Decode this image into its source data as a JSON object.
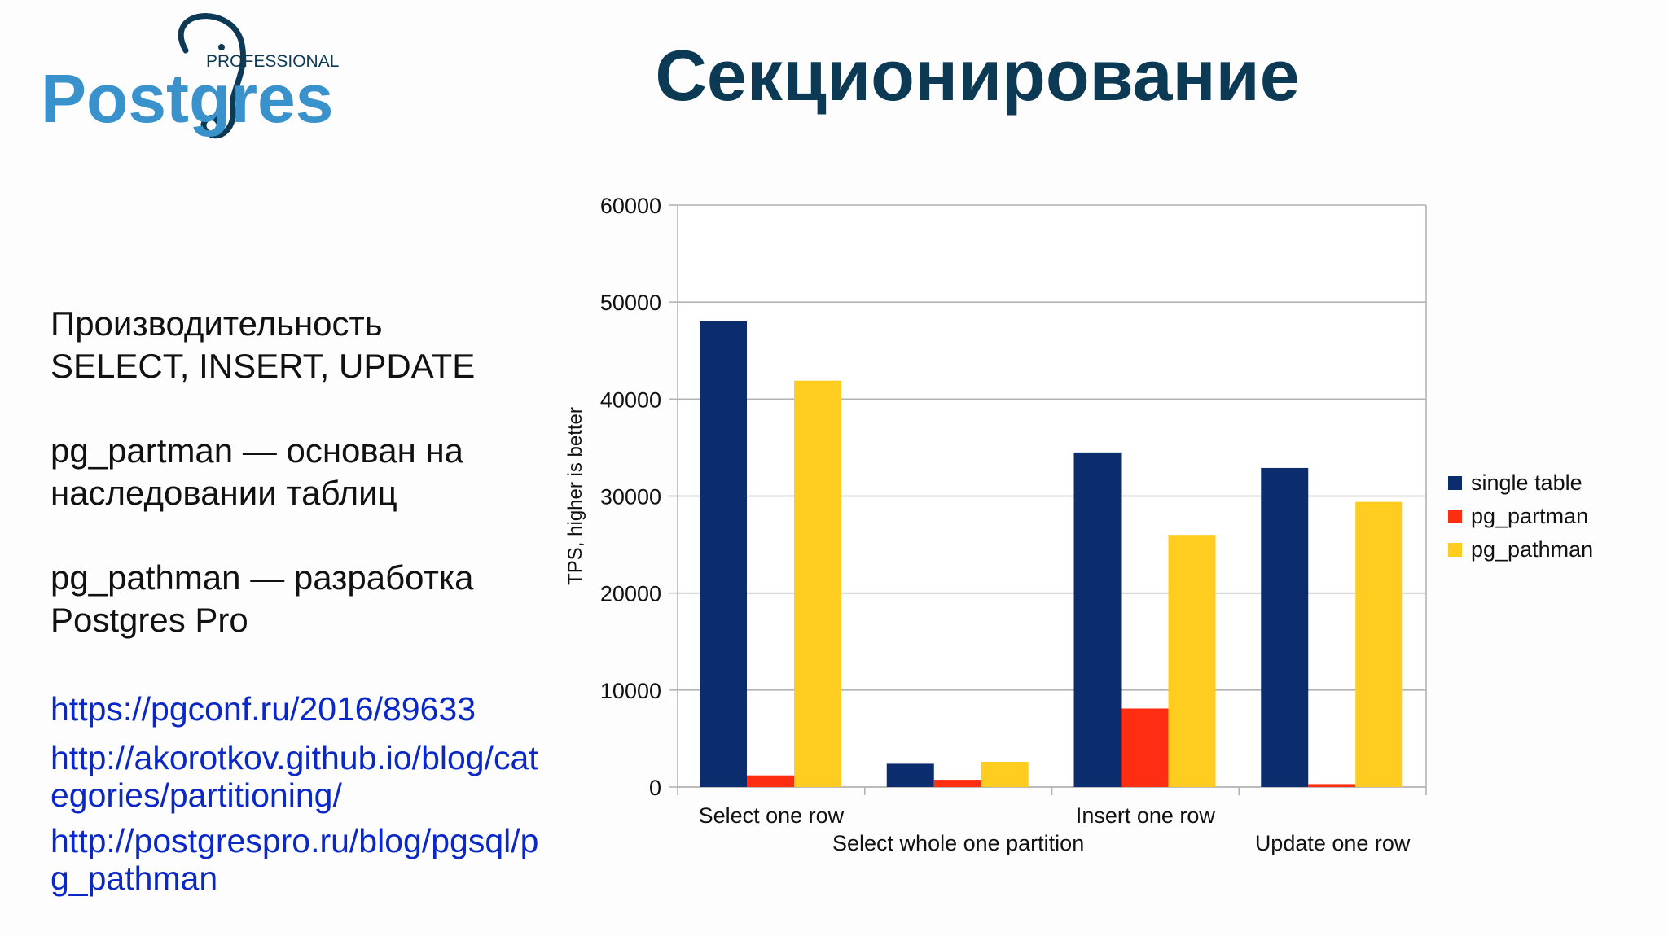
{
  "logo": {
    "top_text": "PROFESSIONAL",
    "word": "Postgres"
  },
  "slide": {
    "title": "Секционирование"
  },
  "body_text": {
    "p1_line1": "Производительность",
    "p1_line2": "SELECT, INSERT, UPDATE",
    "p2_line1": "pg_partman — основан на",
    "p2_line2": "наследовании таблиц",
    "p3_line1": "pg_pathman — разработка",
    "p3_line2": "Postgres Pro"
  },
  "links": [
    "https://pgconf.ru/2016/89633",
    "http://akorotkov.github.io/blog/categories/partitioning/",
    "http://postgrespro.ru/blog/pgsql/pg_pathman"
  ],
  "colors": {
    "title": "#0c3a55",
    "logo_blue": "#3a92cc",
    "logo_dark": "#0c3a55",
    "link": "#0a28c8",
    "single_table": "#0b2d6d",
    "pg_partman": "#ff2d12",
    "pg_pathman": "#ffcc1f"
  },
  "chart_data": {
    "type": "bar",
    "categories": [
      "Select one row",
      "Select whole one partition",
      "Insert one row",
      "Update one row"
    ],
    "series": [
      {
        "name": "single table",
        "values": [
          48000,
          2400,
          34500,
          32900
        ]
      },
      {
        "name": "pg_partman",
        "values": [
          1200,
          750,
          8100,
          300
        ]
      },
      {
        "name": "pg_pathman",
        "values": [
          41900,
          2600,
          26000,
          29400
        ]
      }
    ],
    "ylabel": "TPS, higher is better",
    "ylim": [
      0,
      60000
    ],
    "yticks": [
      "0",
      "10000",
      "20000",
      "30000",
      "40000",
      "50000",
      "60000"
    ],
    "grid": true,
    "legend": "right"
  }
}
